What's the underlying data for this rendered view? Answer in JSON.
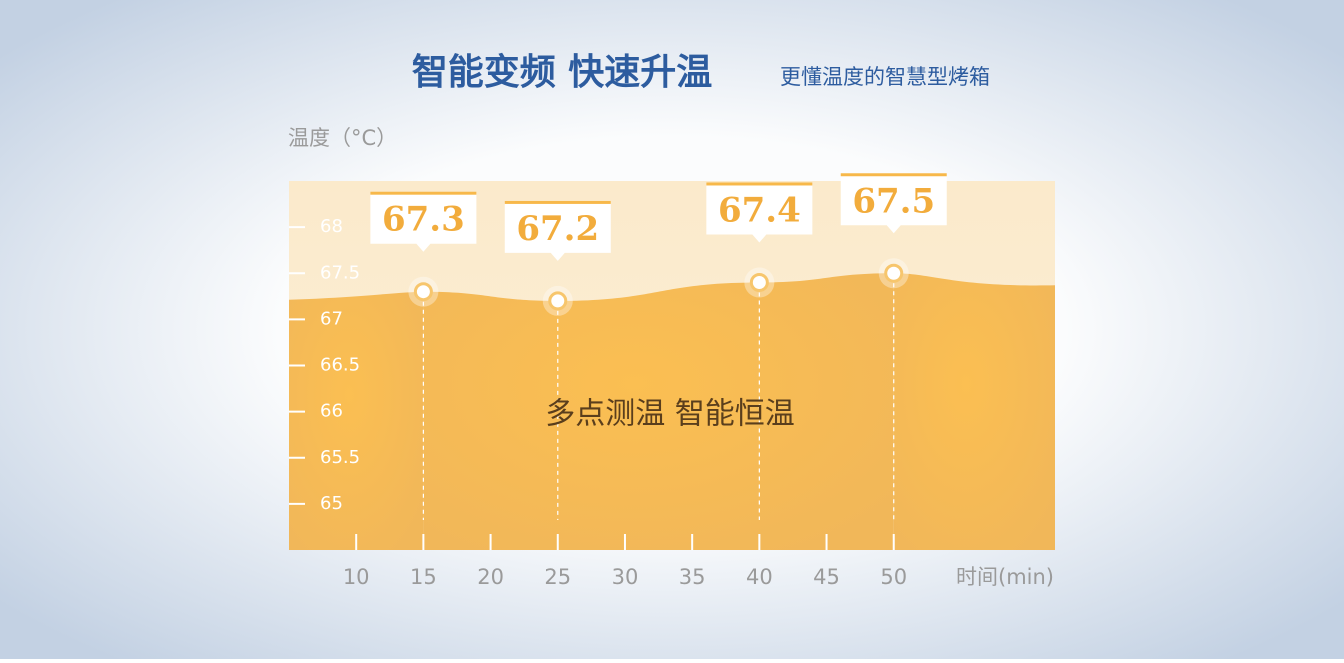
{
  "chart_data": {
    "type": "area",
    "title": "智能变频 快速升温",
    "subtitle": "更懂温度的智慧型烤箱",
    "y_label": "温度（°C）",
    "x_label": "时间(min)",
    "annotation": "多点测温 智能恒温",
    "x": [
      15,
      25,
      40,
      50
    ],
    "values": [
      67.3,
      67.2,
      67.4,
      67.5
    ],
    "color": "#f7b84a",
    "xlim": [
      5,
      62
    ],
    "ylim": [
      64.5,
      68.5
    ],
    "xticks": [
      10,
      15,
      20,
      25,
      30,
      35,
      40,
      45,
      50
    ],
    "yticks": [
      65,
      65.5,
      66,
      66.5,
      67,
      67.5,
      68
    ]
  }
}
